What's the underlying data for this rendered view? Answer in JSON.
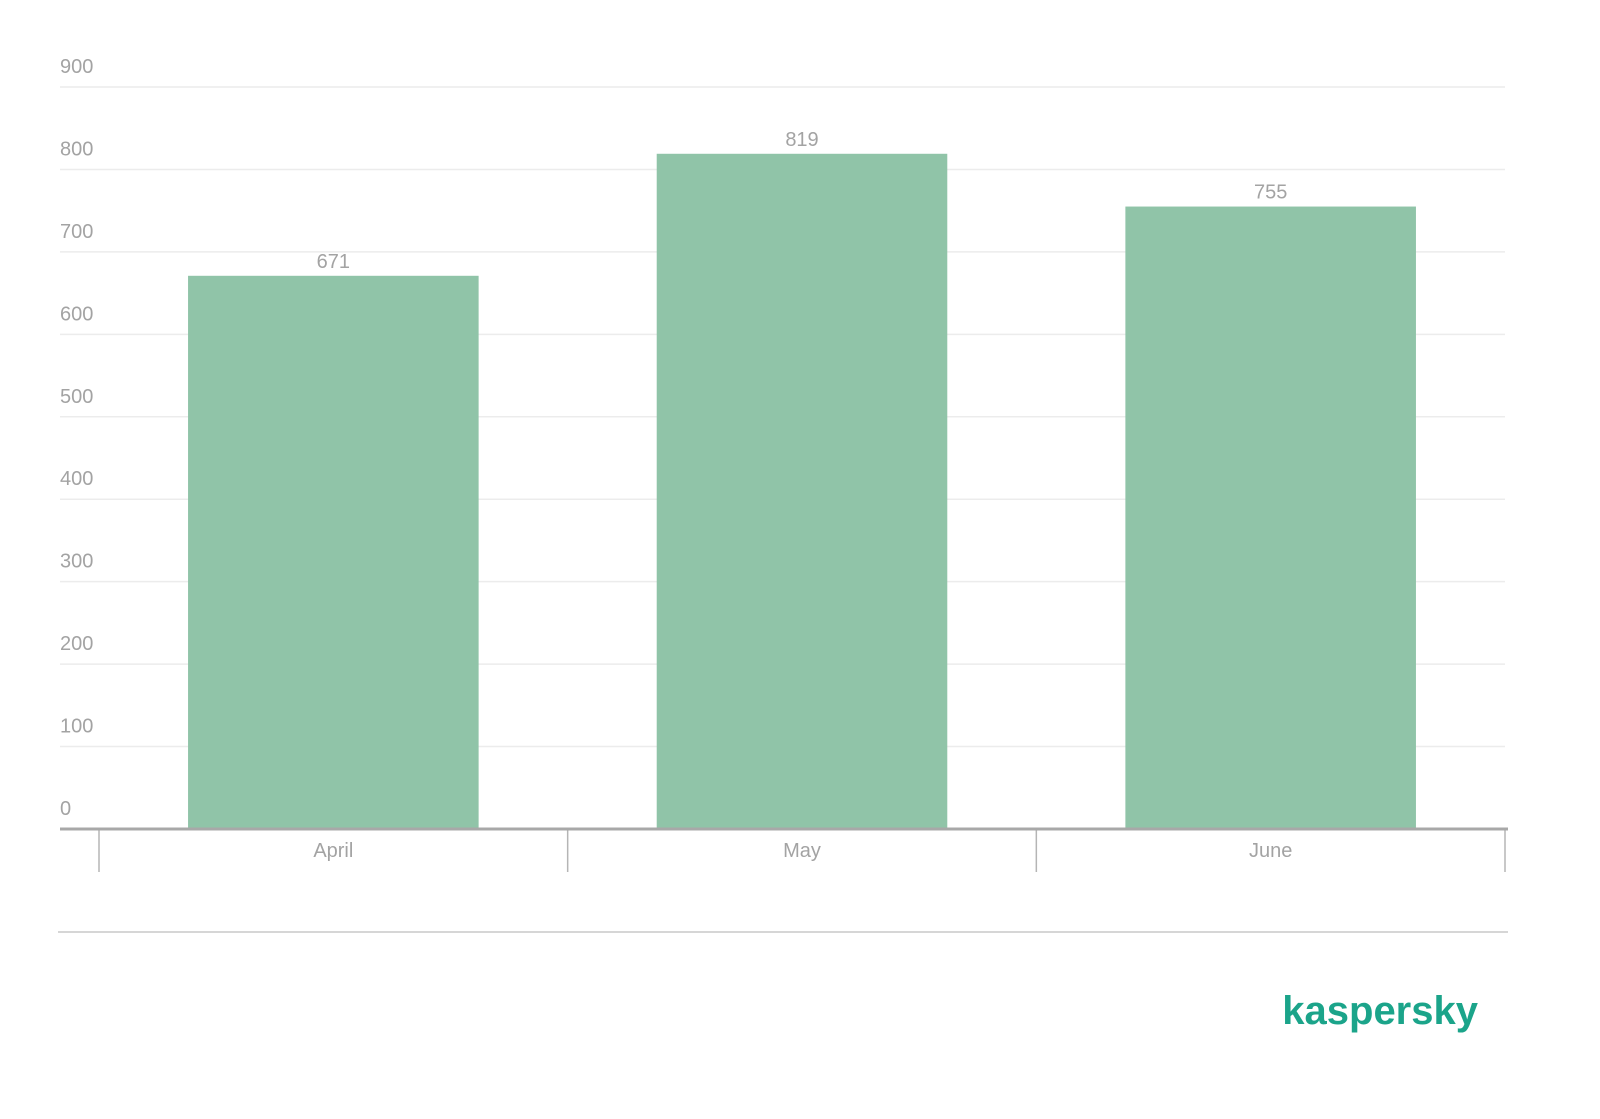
{
  "chart_data": {
    "type": "bar",
    "categories": [
      "April",
      "May",
      "June"
    ],
    "values": [
      671,
      819,
      755
    ],
    "color": "#90c4a8",
    "ylim": [
      0,
      900
    ],
    "yticks": [
      0,
      100,
      200,
      300,
      400,
      500,
      600,
      700,
      800,
      900
    ],
    "grid": true
  },
  "brand": "kaspersky"
}
